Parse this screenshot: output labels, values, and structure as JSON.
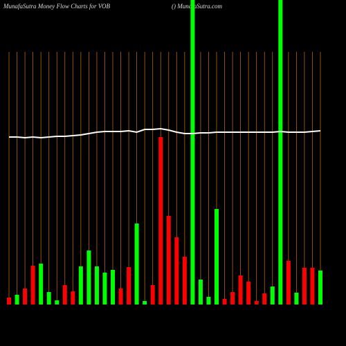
{
  "chart_data": {
    "type": "bar",
    "title": "MunafaSutra  Money Flow  Charts for VOB",
    "subtitle": "() MunafaSutra.com",
    "categories": [
      null,
      null,
      null,
      null,
      null,
      null,
      null,
      null,
      null,
      null,
      null,
      null,
      null,
      null,
      null,
      null,
      null,
      null,
      null,
      null,
      null,
      null,
      null,
      null,
      null,
      null,
      null,
      null,
      null,
      null,
      null,
      null,
      null,
      null,
      null,
      null,
      null,
      null,
      null,
      null
    ],
    "values": [
      10,
      14,
      23,
      56,
      59,
      18,
      6,
      28,
      19,
      55,
      78,
      55,
      46,
      50,
      23,
      54,
      117,
      5,
      28,
      242,
      128,
      97,
      69,
      460,
      36,
      11,
      138,
      8,
      18,
      42,
      33,
      5,
      16,
      26,
      460,
      63,
      17,
      53,
      53,
      49
    ],
    "bar_colors": [
      "#ff0000",
      "#00ff00",
      "#ff0000",
      "#ff0000",
      "#00ff00",
      "#00ff00",
      "#00ff00",
      "#ff0000",
      "#ff0000",
      "#00ff00",
      "#00ff00",
      "#00ff00",
      "#00ff00",
      "#00ff00",
      "#ff0000",
      "#ff0000",
      "#00ff00",
      "#00ff00",
      "#ff0000",
      "#ff0000",
      "#ff0000",
      "#ff0000",
      "#ff0000",
      "#00ff00",
      "#00ff00",
      "#00ff00",
      "#00ff00",
      "#ff0000",
      "#ff0000",
      "#ff0000",
      "#ff0000",
      "#ff0000",
      "#ff0000",
      "#00ff00",
      "#00ff00",
      "#ff0000",
      "#00ff00",
      "#ff0000",
      "#ff0000",
      "#00ff00"
    ],
    "line_values": [
      242,
      242,
      241,
      242,
      241,
      242,
      243,
      243,
      244,
      245,
      247,
      249,
      250,
      250,
      250,
      251,
      249,
      253,
      253,
      254,
      252,
      249,
      247,
      247,
      248,
      248,
      249,
      249,
      249,
      249,
      249,
      249,
      249,
      249,
      250,
      249,
      249,
      249,
      250,
      251
    ],
    "line_color": "#ffffff",
    "grid_color": "#b8660b",
    "ylim": [
      0,
      440
    ]
  }
}
